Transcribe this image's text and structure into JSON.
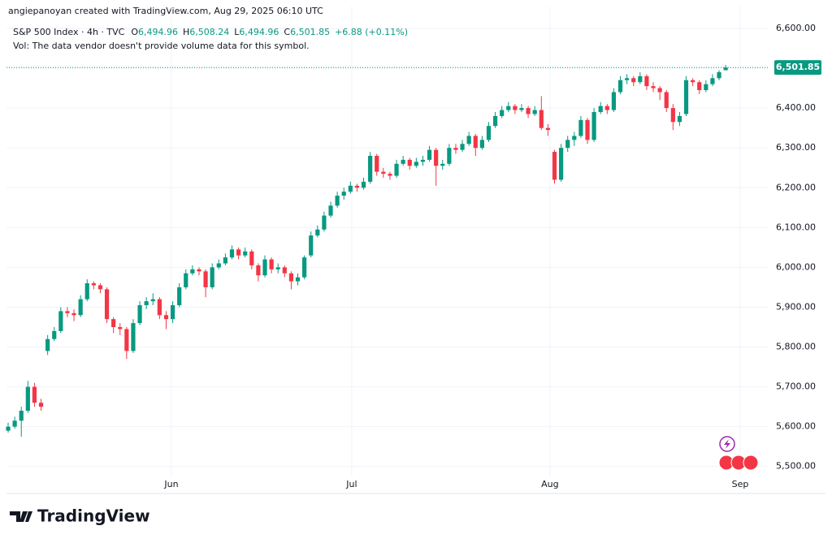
{
  "caption": "angiepanoyan created with TradingView.com, Aug 29, 2025 06:10 UTC",
  "brand": "TradingView",
  "legend": {
    "symbol": "S&P 500 Index · 4h · TVC",
    "fields": [
      {
        "label": "O",
        "value": "6,494.96"
      },
      {
        "label": "H",
        "value": "6,508.24"
      },
      {
        "label": "L",
        "value": "6,494.96"
      },
      {
        "label": "C",
        "value": "6,501.85"
      }
    ],
    "change": "+6.88 (+0.11%)",
    "volume_note": "Vol: The data vendor doesn't provide volume data for this symbol."
  },
  "chart_data": {
    "type": "candlestick",
    "up_color": "#089981",
    "down_color": "#f23645",
    "last_label": "6,501.85",
    "xlim": [
      -0.25,
      115.4
    ],
    "xticks": [
      {
        "value": 24.8,
        "label": "Jun"
      },
      {
        "value": 52.2,
        "label": "Jul"
      },
      {
        "value": 82.3,
        "label": "Aug"
      },
      {
        "value": 111.2,
        "label": "Sep"
      }
    ],
    "ylim": [
      5475,
      6655
    ],
    "yticks": [
      {
        "value": 5500,
        "label": "5,500.00"
      },
      {
        "value": 5600,
        "label": "5,600.00"
      },
      {
        "value": 5700,
        "label": "5,700.00"
      },
      {
        "value": 5800,
        "label": "5,800.00"
      },
      {
        "value": 5900,
        "label": "5,900.00"
      },
      {
        "value": 6000,
        "label": "6,000.00"
      },
      {
        "value": 6100,
        "label": "6,100.00"
      },
      {
        "value": 6200,
        "label": "6,200.00"
      },
      {
        "value": 6300,
        "label": "6,300.00"
      },
      {
        "value": 6400,
        "label": "6,400.00"
      },
      {
        "value": 6500,
        "label": "6,500.00"
      },
      {
        "value": 6600,
        "label": "6,600.00"
      }
    ],
    "grid": true,
    "open": [
      5590,
      5600,
      5615,
      5640,
      5700,
      5660,
      5790,
      5820,
      5840,
      5890,
      5885,
      5880,
      5920,
      5960,
      5955,
      5945,
      5870,
      5850,
      5845,
      5790,
      5860,
      5905,
      5915,
      5920,
      5880,
      5870,
      5905,
      5950,
      5985,
      5995,
      5990,
      5950,
      6000,
      6010,
      6025,
      6045,
      6030,
      6040,
      6005,
      5980,
      6020,
      5995,
      6000,
      5985,
      5965,
      5975,
      6030,
      6080,
      6095,
      6130,
      6155,
      6180,
      6190,
      6205,
      6200,
      6215,
      6280,
      6240,
      6235,
      6230,
      6260,
      6270,
      6255,
      6265,
      6270,
      6295,
      6255,
      6260,
      6300,
      6295,
      6310,
      6330,
      6300,
      6320,
      6355,
      6380,
      6395,
      6405,
      6395,
      6400,
      6385,
      6395,
      6350,
      6290,
      6220,
      6300,
      6320,
      6330,
      6370,
      6320,
      6390,
      6405,
      6395,
      6440,
      6470,
      6475,
      6465,
      6480,
      6455,
      6450,
      6440,
      6400,
      6365,
      6385,
      6470,
      6465,
      6445,
      6460,
      6475,
      6494.96
    ],
    "high": [
      5610,
      5625,
      5650,
      5715,
      5710,
      5670,
      5830,
      5850,
      5900,
      5900,
      5895,
      5930,
      5970,
      5965,
      5960,
      5950,
      5875,
      5860,
      5850,
      5870,
      5915,
      5925,
      5935,
      5925,
      5890,
      5915,
      5960,
      5995,
      6005,
      6000,
      5995,
      6010,
      6020,
      6035,
      6055,
      6050,
      6050,
      6045,
      6010,
      6030,
      6025,
      6010,
      6005,
      5990,
      5985,
      6030,
      6090,
      6105,
      6140,
      6165,
      6190,
      6200,
      6215,
      6210,
      6225,
      6290,
      6285,
      6250,
      6240,
      6270,
      6280,
      6275,
      6275,
      6280,
      6305,
      6300,
      6270,
      6310,
      6310,
      6320,
      6340,
      6335,
      6330,
      6365,
      6390,
      6405,
      6415,
      6410,
      6410,
      6405,
      6405,
      6430,
      6360,
      6295,
      6310,
      6330,
      6340,
      6380,
      6375,
      6400,
      6415,
      6410,
      6450,
      6480,
      6485,
      6480,
      6490,
      6485,
      6465,
      6455,
      6445,
      6410,
      6390,
      6480,
      6475,
      6470,
      6470,
      6485,
      6495,
      6508.24
    ],
    "low": [
      5585,
      5595,
      5575,
      5635,
      5650,
      5640,
      5780,
      5815,
      5835,
      5875,
      5865,
      5875,
      5915,
      5945,
      5935,
      5860,
      5835,
      5830,
      5770,
      5785,
      5855,
      5895,
      5905,
      5870,
      5845,
      5860,
      5900,
      5945,
      5980,
      5980,
      5925,
      5945,
      5995,
      6005,
      6020,
      6020,
      6025,
      5995,
      5965,
      5975,
      5985,
      5985,
      5975,
      5945,
      5955,
      5970,
      6025,
      6075,
      6090,
      6125,
      6150,
      6170,
      6185,
      6190,
      6195,
      6210,
      6230,
      6225,
      6220,
      6225,
      6255,
      6245,
      6250,
      6255,
      6265,
      6205,
      6245,
      6255,
      6285,
      6290,
      6305,
      6280,
      6295,
      6315,
      6350,
      6375,
      6390,
      6385,
      6390,
      6375,
      6380,
      6345,
      6330,
      6210,
      6215,
      6290,
      6305,
      6325,
      6310,
      6315,
      6385,
      6385,
      6390,
      6435,
      6460,
      6455,
      6460,
      6445,
      6440,
      6420,
      6390,
      6345,
      6355,
      6380,
      6455,
      6435,
      6440,
      6455,
      6470,
      6494.96
    ],
    "close": [
      5600,
      5615,
      5640,
      5700,
      5660,
      5650,
      5820,
      5840,
      5890,
      5885,
      5880,
      5920,
      5960,
      5955,
      5945,
      5870,
      5850,
      5845,
      5790,
      5860,
      5905,
      5915,
      5920,
      5880,
      5870,
      5905,
      5950,
      5985,
      5995,
      5990,
      5950,
      6000,
      6010,
      6025,
      6045,
      6030,
      6040,
      6005,
      5980,
      6020,
      5995,
      6000,
      5985,
      5965,
      5975,
      6025,
      6080,
      6095,
      6130,
      6155,
      6180,
      6190,
      6205,
      6200,
      6215,
      6280,
      6240,
      6235,
      6230,
      6260,
      6270,
      6255,
      6265,
      6270,
      6295,
      6255,
      6260,
      6300,
      6295,
      6310,
      6330,
      6300,
      6320,
      6355,
      6380,
      6395,
      6405,
      6395,
      6400,
      6385,
      6395,
      6350,
      6345,
      6220,
      6300,
      6320,
      6330,
      6370,
      6320,
      6390,
      6405,
      6395,
      6440,
      6470,
      6475,
      6465,
      6480,
      6455,
      6450,
      6440,
      6400,
      6365,
      6380,
      6470,
      6465,
      6445,
      6460,
      6475,
      6490,
      6501.85
    ]
  }
}
